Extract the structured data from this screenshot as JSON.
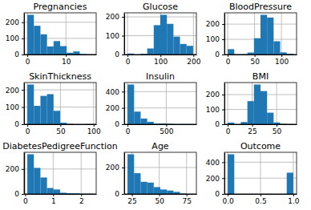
{
  "chart_data": [
    {
      "type": "histogram",
      "title": "Pregnancies",
      "bins": [
        0,
        1.7,
        3.4,
        5.1,
        6.8,
        8.5,
        10.2,
        11.9,
        13.6,
        15.3,
        17
      ],
      "values": [
        246,
        178,
        125,
        50,
        83,
        52,
        11,
        19,
        3,
        1
      ],
      "color": "#1f77b4",
      "xlim": [
        -0.85,
        17.85
      ],
      "ylim": [
        0,
        258.3
      ],
      "xticks": [
        0,
        10
      ],
      "yticks": [
        0,
        100,
        200
      ],
      "grid": true
    },
    {
      "type": "histogram",
      "title": "Glucose",
      "bins": [
        0,
        19.9,
        39.8,
        59.7,
        79.6,
        99.5,
        119.4,
        139.3,
        159.2,
        179.1,
        199
      ],
      "values": [
        5,
        0,
        4,
        32,
        156,
        211,
        163,
        95,
        56,
        46
      ],
      "color": "#1f77b4",
      "xlim": [
        -9.95,
        208.95
      ],
      "ylim": [
        0,
        221.55
      ],
      "xticks": [
        0,
        100,
        200
      ],
      "yticks": [
        0,
        100,
        200
      ],
      "grid": true
    },
    {
      "type": "histogram",
      "title": "BloodPressure",
      "bins": [
        0,
        12.2,
        24.4,
        36.6,
        48.8,
        61,
        73.2,
        85.4,
        97.6,
        109.8,
        122
      ],
      "values": [
        35,
        1,
        2,
        13,
        107,
        261,
        243,
        87,
        14,
        5
      ],
      "color": "#1f77b4",
      "xlim": [
        -6.1,
        128.1
      ],
      "ylim": [
        0,
        274.05
      ],
      "xticks": [
        0,
        50,
        100
      ],
      "yticks": [
        0,
        100,
        200
      ],
      "grid": true
    },
    {
      "type": "histogram",
      "title": "SkinThickness",
      "bins": [
        0,
        9.9,
        19.8,
        29.7,
        39.6,
        49.5,
        59.4,
        69.3,
        79.2,
        89.1,
        99
      ],
      "values": [
        231,
        107,
        165,
        175,
        78,
        9,
        2,
        0,
        0,
        1
      ],
      "color": "#1f77b4",
      "xlim": [
        -4.95,
        103.95
      ],
      "ylim": [
        0,
        242.55
      ],
      "xticks": [
        0,
        50,
        100
      ],
      "yticks": [
        0,
        100,
        200
      ],
      "grid": true
    },
    {
      "type": "histogram",
      "title": "Insulin",
      "bins": [
        0,
        84.6,
        169.2,
        253.8,
        338.4,
        423,
        507.6,
        592.2,
        676.8,
        761.4,
        846
      ],
      "values": [
        487,
        155,
        70,
        30,
        8,
        9,
        5,
        1,
        2,
        1
      ],
      "color": "#1f77b4",
      "xlim": [
        -42.3,
        888.3
      ],
      "ylim": [
        0,
        511.35
      ],
      "xticks": [
        0,
        500
      ],
      "yticks": [
        0,
        200,
        400
      ],
      "grid": true
    },
    {
      "type": "histogram",
      "title": "BMI",
      "bins": [
        0,
        6.71,
        13.42,
        20.13,
        26.84,
        33.55,
        40.26,
        46.97,
        53.68,
        60.39,
        67.1
      ],
      "values": [
        11,
        0,
        15,
        156,
        268,
        224,
        78,
        12,
        3,
        1
      ],
      "color": "#1f77b4",
      "xlim": [
        -3.355,
        70.455
      ],
      "ylim": [
        0,
        281.4
      ],
      "xticks": [
        0,
        25,
        50
      ],
      "yticks": [
        0,
        100,
        200
      ],
      "grid": true
    },
    {
      "type": "histogram",
      "title": "DiabetesPedigreeFunction",
      "bins": [
        0.078,
        0.3122,
        0.5464,
        0.7806,
        1.0148,
        1.249,
        1.4832,
        1.7174,
        1.9516,
        2.1858,
        2.42
      ],
      "values": [
        318,
        209,
        132,
        48,
        36,
        10,
        6,
        5,
        2,
        2
      ],
      "color": "#1f77b4",
      "xlim": [
        -0.0391,
        2.5371
      ],
      "ylim": [
        0,
        333.9
      ],
      "xticks": [
        0,
        1,
        2
      ],
      "yticks": [
        0,
        200
      ],
      "grid": true
    },
    {
      "type": "histogram",
      "title": "Age",
      "bins": [
        21,
        27,
        33,
        39,
        45,
        51,
        57,
        63,
        69,
        75,
        81
      ],
      "values": [
        300,
        157,
        92,
        86,
        52,
        34,
        26,
        16,
        4,
        1
      ],
      "color": "#1f77b4",
      "xlim": [
        18,
        84
      ],
      "ylim": [
        0,
        315
      ],
      "xticks": [
        25,
        50,
        75
      ],
      "yticks": [
        0,
        200
      ],
      "grid": true
    },
    {
      "type": "histogram",
      "title": "Outcome",
      "bins": [
        0,
        0.1,
        0.2,
        0.3,
        0.4,
        0.5,
        0.6,
        0.7,
        0.8,
        0.9,
        1
      ],
      "values": [
        500,
        0,
        0,
        0,
        0,
        0,
        0,
        0,
        0,
        268
      ],
      "color": "#1f77b4",
      "xlim": [
        -0.05,
        1.05
      ],
      "ylim": [
        0,
        525
      ],
      "xticks": [
        {
          "value": 0,
          "label": "0.0"
        },
        {
          "value": 0.5,
          "label": "0.5"
        },
        {
          "value": 1,
          "label": "1.0"
        }
      ],
      "yticks": [
        0,
        200,
        400
      ],
      "grid": true
    }
  ]
}
